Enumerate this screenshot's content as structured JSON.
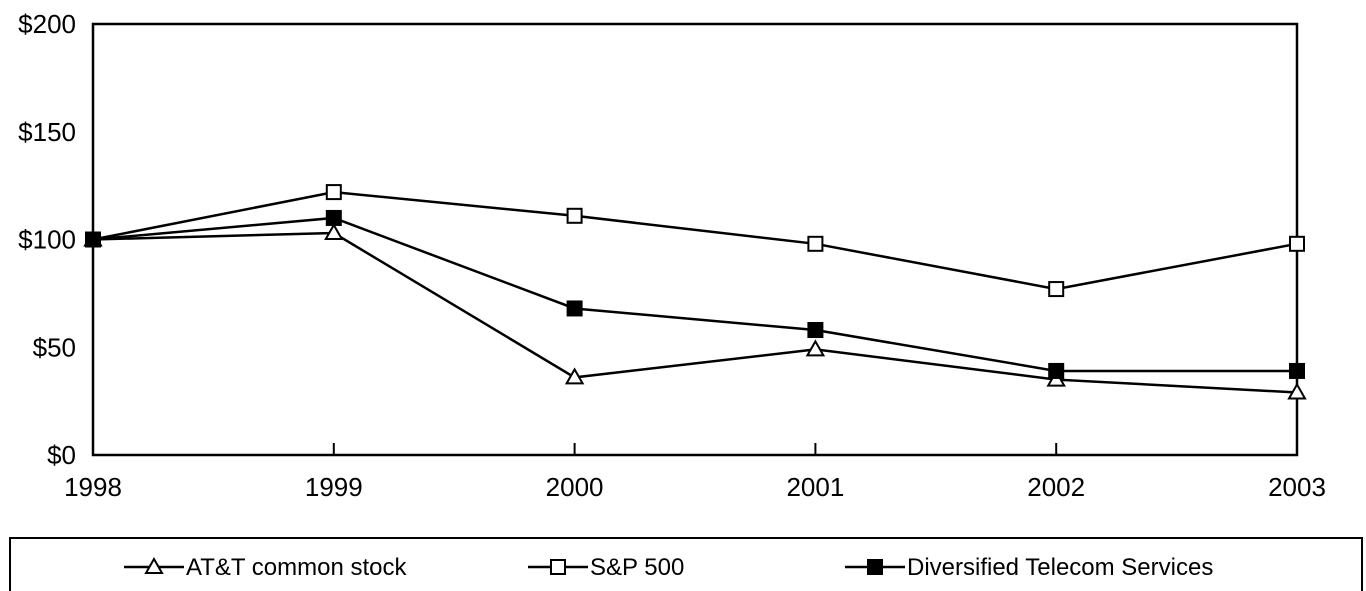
{
  "chart_data": {
    "type": "line",
    "title": "",
    "xlabel": "",
    "ylabel": "",
    "x": [
      "1998",
      "1999",
      "2000",
      "2001",
      "2002",
      "2003"
    ],
    "ylim": [
      0,
      200
    ],
    "yticks": [
      0,
      50,
      100,
      150,
      200
    ],
    "ytick_labels": [
      "$0",
      "$50",
      "$100",
      "$150",
      "$200"
    ],
    "grid": false,
    "legend_position": "bottom",
    "series": [
      {
        "name": "AT&T common stock",
        "marker": "open-triangle",
        "values": [
          100,
          103,
          36,
          49,
          35,
          29
        ]
      },
      {
        "name": "S&P 500",
        "marker": "open-square",
        "values": [
          100,
          122,
          111,
          98,
          77,
          98
        ]
      },
      {
        "name": "Diversified Telecom Services",
        "marker": "filled-square",
        "values": [
          100,
          110,
          68,
          58,
          39,
          39
        ]
      }
    ]
  }
}
